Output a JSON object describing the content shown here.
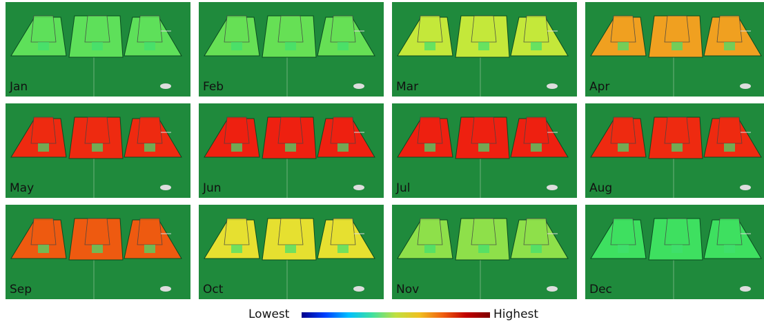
{
  "panels": [
    {
      "label": "Jan",
      "color": "#5ee05a"
    },
    {
      "label": "Feb",
      "color": "#66e055"
    },
    {
      "label": "Mar",
      "color": "#c4e83a"
    },
    {
      "label": "Apr",
      "color": "#f0a020"
    },
    {
      "label": "May",
      "color": "#ee2a10"
    },
    {
      "label": "Jun",
      "color": "#ee2010"
    },
    {
      "label": "Jul",
      "color": "#ee2010"
    },
    {
      "label": "Aug",
      "color": "#ee2a10"
    },
    {
      "label": "Sep",
      "color": "#ee5a10"
    },
    {
      "label": "Oct",
      "color": "#e6e030"
    },
    {
      "label": "Nov",
      "color": "#8ee04a"
    },
    {
      "label": "Dec",
      "color": "#3ee060"
    }
  ],
  "legend": {
    "low": "Lowest",
    "high": "Highest"
  }
}
